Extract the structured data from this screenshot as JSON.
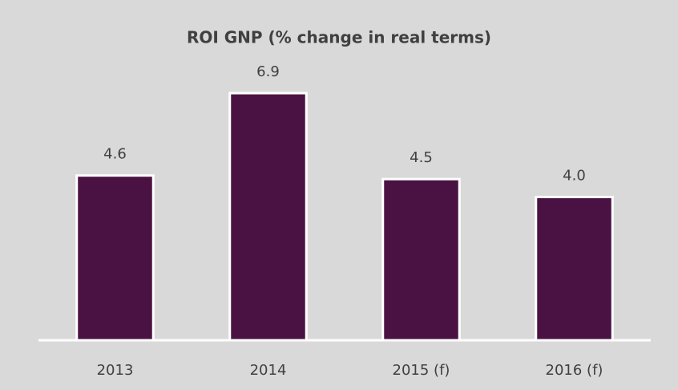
{
  "chart_data": {
    "type": "bar",
    "title": "ROI GNP (% change in real terms)",
    "categories": [
      "2013",
      "2014",
      "2015 (f)",
      "2016 (f)"
    ],
    "values": [
      4.6,
      6.9,
      4.5,
      4.0
    ],
    "value_labels": [
      "4.6",
      "6.9",
      "4.5",
      "4.0"
    ],
    "color": "#4a1242",
    "ylim": [
      0,
      8
    ]
  }
}
